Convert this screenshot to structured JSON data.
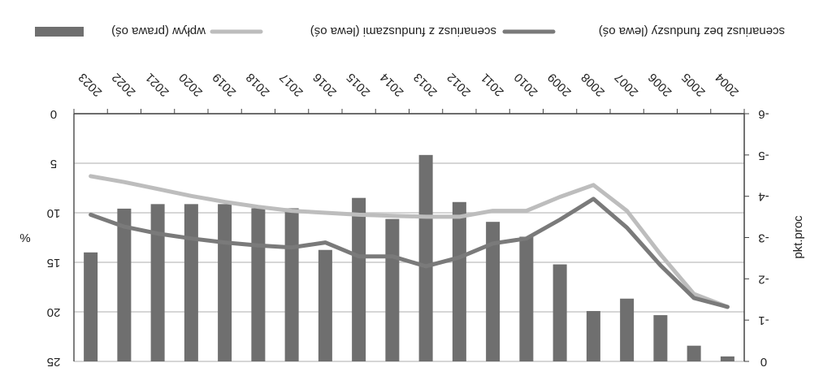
{
  "chart_data": {
    "type": "bar",
    "orientation": "mirrored-horizontally-and-vertically",
    "categories": [
      "2004",
      "2005",
      "2006",
      "2007",
      "2008",
      "2009",
      "2010",
      "2011",
      "2012",
      "2013",
      "2014",
      "2015",
      "2016",
      "2017",
      "2018",
      "2019",
      "2020",
      "2021",
      "2022",
      "2023"
    ],
    "left_axis": {
      "label": "%",
      "ticks": [
        "0",
        "5",
        "10",
        "15",
        "20",
        "25"
      ],
      "range": [
        0,
        25
      ],
      "reversed": true
    },
    "right_axis": {
      "label": "pkt.proc",
      "ticks": [
        "0",
        "-1",
        "-2",
        "-3",
        "-4",
        "-5",
        "-6"
      ],
      "range": [
        0,
        -6
      ]
    },
    "series": [
      {
        "name": "wpływ (prawa oś)",
        "kind": "bar",
        "axis": "right",
        "color": "#6f6f6f",
        "values": [
          -0.12,
          -0.38,
          -1.12,
          -1.52,
          -1.22,
          -2.35,
          -3.02,
          -3.38,
          -3.86,
          -5.0,
          -3.45,
          -3.96,
          -2.7,
          -3.71,
          -3.71,
          -3.81,
          -3.81,
          -3.81,
          -3.7,
          -2.64
        ]
      },
      {
        "name": "scenariusz z funduszami (lewa oś)",
        "kind": "line",
        "axis": "left",
        "color": "#bdbdbd",
        "values": [
          19.5,
          18.2,
          14.2,
          9.8,
          7.2,
          8.4,
          9.8,
          9.8,
          10.4,
          10.4,
          10.3,
          10.2,
          10.0,
          9.8,
          9.4,
          8.9,
          8.3,
          7.6,
          6.9,
          6.3
        ]
      },
      {
        "name": "scenariusz bez funduszy (lewa oś)",
        "kind": "line",
        "axis": "left",
        "color": "#7a7a7a",
        "values": [
          19.5,
          18.6,
          15.3,
          11.5,
          8.6,
          10.7,
          12.6,
          13.1,
          14.5,
          15.4,
          14.4,
          14.4,
          13.0,
          13.5,
          13.3,
          13.0,
          12.6,
          12.1,
          11.4,
          10.2
        ]
      }
    ],
    "ylim_left": [
      0,
      25
    ],
    "ylim_right": [
      0,
      -6
    ],
    "grid": true,
    "legend_position": "top",
    "title": ""
  }
}
